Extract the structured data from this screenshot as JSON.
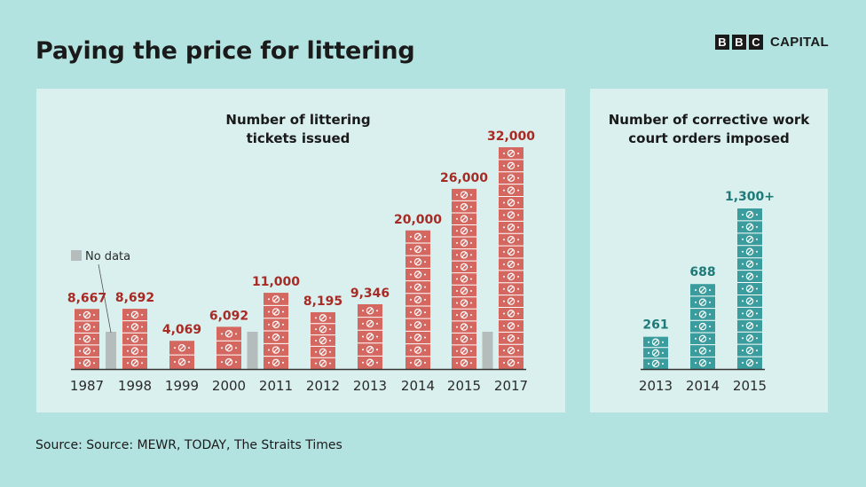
{
  "title": "Paying the price for littering",
  "brand": {
    "letters": [
      "B",
      "B",
      "C"
    ],
    "word": "CAPITAL"
  },
  "source": "Source: Source: MEWR, TODAY, The Straits Times",
  "colors": {
    "ticket": "#d46860",
    "ticket_label": "#a82a24",
    "order": "#3a9c9c",
    "order_label": "#1d7a78",
    "nodata": "#b5bcbc"
  },
  "legend": {
    "nodata_label": "No data"
  },
  "chart_data": [
    {
      "type": "bar",
      "title": "Number of littering tickets issued",
      "categories": [
        "1987",
        "1998",
        "1999",
        "2000",
        "2011",
        "2012",
        "2013",
        "2014",
        "2015",
        "2017"
      ],
      "values": [
        8667,
        8692,
        4069,
        6092,
        11000,
        8195,
        9346,
        20000,
        26000,
        32000
      ],
      "value_labels": [
        "8,667",
        "8,692",
        "4,069",
        "6,092",
        "11,000",
        "8,195",
        "9,346",
        "20,000",
        "26,000",
        "32,000"
      ],
      "no_data_gaps": [
        "1987–1998",
        "2000–2011",
        "2015–2017"
      ],
      "legend": [
        "No data"
      ],
      "ylim": [
        0,
        32000
      ]
    },
    {
      "type": "bar",
      "title": "Number of corrective work court orders imposed",
      "categories": [
        "2013",
        "2014",
        "2015"
      ],
      "values": [
        261,
        688,
        1300
      ],
      "value_labels": [
        "261",
        "688",
        "1,300+"
      ],
      "ylim": [
        0,
        1300
      ]
    }
  ]
}
